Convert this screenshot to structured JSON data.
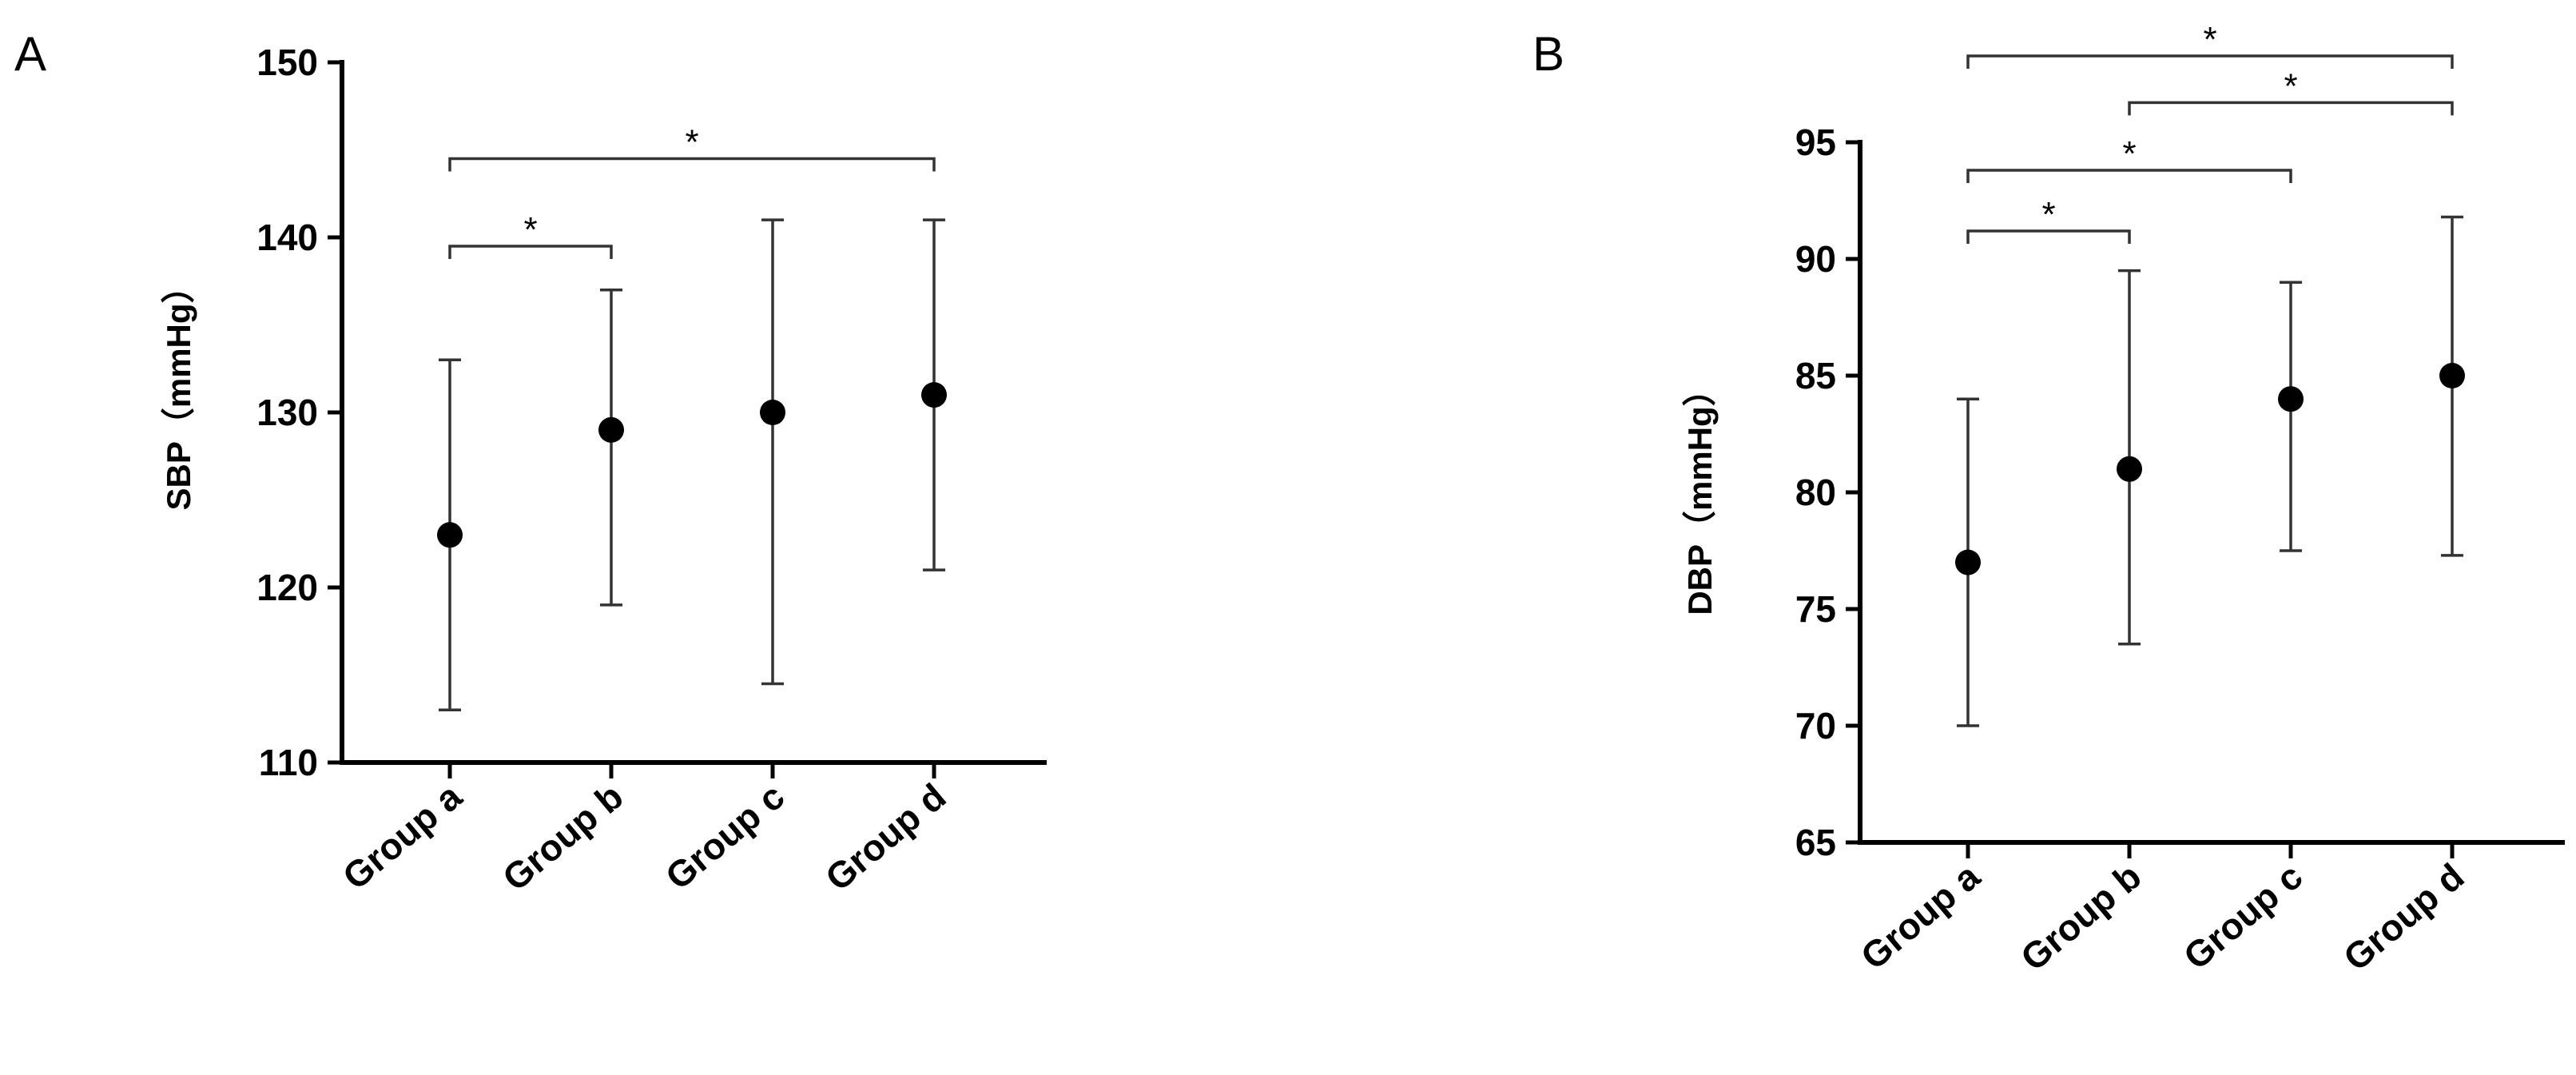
{
  "chart_data": [
    {
      "type": "scatter",
      "panel_label": "A",
      "title": "",
      "xlabel": "",
      "ylabel": "SBP（mmHg）",
      "ylim": [
        110,
        150
      ],
      "yticks": [
        110,
        120,
        130,
        140,
        150
      ],
      "categories": [
        "Group a",
        "Group b",
        "Group c",
        "Group d"
      ],
      "series": [
        {
          "values": [
            123,
            129,
            130,
            131
          ],
          "error_low": [
            113,
            119,
            114.5,
            121
          ],
          "error_high": [
            133,
            137,
            141,
            141
          ]
        }
      ],
      "significance": [
        {
          "from": "Group a",
          "to": "Group b",
          "label": "*",
          "y": 139.5
        },
        {
          "from": "Group a",
          "to": "Group d",
          "label": "*",
          "y": 144.5
        }
      ],
      "grid": false,
      "legend": "none"
    },
    {
      "type": "scatter",
      "panel_label": "B",
      "title": "",
      "xlabel": "",
      "ylabel": "DBP（mmHg）",
      "ylim": [
        65,
        95
      ],
      "yticks": [
        65,
        70,
        75,
        80,
        85,
        90,
        95
      ],
      "categories": [
        "Group a",
        "Group b",
        "Group c",
        "Group d"
      ],
      "series": [
        {
          "values": [
            77,
            81,
            84,
            85
          ],
          "error_low": [
            70,
            73.5,
            77.5,
            77.3
          ],
          "error_high": [
            84,
            89.5,
            89,
            91.8
          ]
        }
      ],
      "significance": [
        {
          "from": "Group a",
          "to": "Group b",
          "label": "*",
          "y": 91.2
        },
        {
          "from": "Group a",
          "to": "Group c",
          "label": "*",
          "y": 93.8
        },
        {
          "from": "Group b",
          "to": "Group d",
          "label": "*",
          "y": 96.7
        },
        {
          "from": "Group a",
          "to": "Group d",
          "label": "*",
          "y": 98.7
        }
      ],
      "grid": false,
      "legend": "none"
    }
  ]
}
